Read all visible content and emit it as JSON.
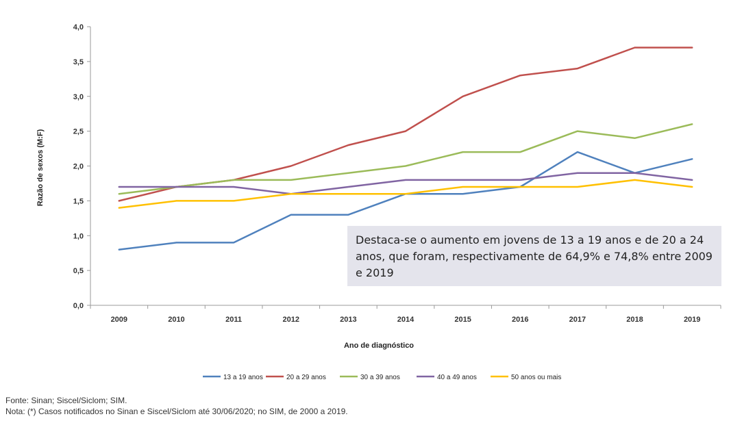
{
  "chart_data": {
    "type": "line",
    "xlabel": "Ano de diagnóstico",
    "ylabel": "Razão de sexos (M:F)",
    "ylim": [
      0,
      4
    ],
    "yticks": [
      "0,0",
      "0,5",
      "1,0",
      "1,5",
      "2,0",
      "2,5",
      "3,0",
      "3,5",
      "4,0"
    ],
    "categories": [
      "2009",
      "2010",
      "2011",
      "2012",
      "2013",
      "2014",
      "2015",
      "2016",
      "2017",
      "2018",
      "2019"
    ],
    "grid": false,
    "legend_position": "bottom",
    "series": [
      {
        "name": "13 a 19 anos",
        "color": "#4f81bd",
        "values": [
          0.8,
          0.9,
          0.9,
          1.3,
          1.3,
          1.6,
          1.6,
          1.7,
          2.2,
          1.9,
          2.1
        ]
      },
      {
        "name": "20 a 29 anos",
        "color": "#c0504d",
        "values": [
          1.5,
          1.7,
          1.8,
          2.0,
          2.3,
          2.5,
          3.0,
          3.3,
          3.4,
          3.7,
          3.7
        ]
      },
      {
        "name": "30 a 39 anos",
        "color": "#9bbb59",
        "values": [
          1.6,
          1.7,
          1.8,
          1.8,
          1.9,
          2.0,
          2.2,
          2.2,
          2.5,
          2.4,
          2.6
        ]
      },
      {
        "name": "40 a 49 anos",
        "color": "#8064a2",
        "values": [
          1.7,
          1.7,
          1.7,
          1.6,
          1.7,
          1.8,
          1.8,
          1.8,
          1.9,
          1.9,
          1.8
        ]
      },
      {
        "name": "50 anos ou mais",
        "color": "#ffc000",
        "values": [
          1.4,
          1.5,
          1.5,
          1.6,
          1.6,
          1.6,
          1.7,
          1.7,
          1.7,
          1.8,
          1.7
        ]
      }
    ],
    "annotation": "Destaca-se o aumento em jovens de 13 a 19 anos e de 20 a 24 anos, que foram, respectivamente de 64,9% e 74,8% entre 2009 e 2019"
  },
  "footer": {
    "source": "Fonte: Sinan; Siscel/Siclom; SIM.",
    "note": "Nota: (*) Casos notificados no Sinan e Siscel/Siclom até 30/06/2020; no SIM, de 2000 a 2019."
  }
}
